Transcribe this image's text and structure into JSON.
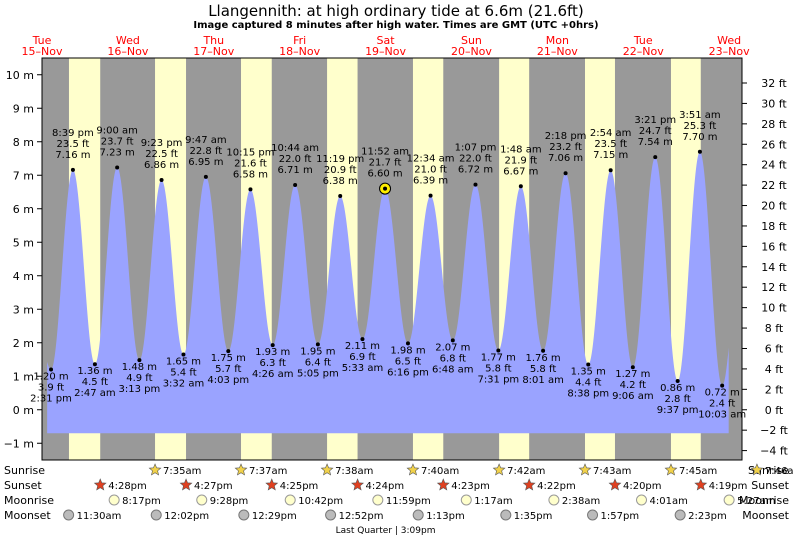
{
  "header": {
    "title": "Llangennith: at high  ordinary tide at 6.6m (21.6ft)",
    "subtitle": "Image captured 8 minutes after high water. Times are GMT (UTC +0hrs)"
  },
  "colors": {
    "day": "#ffffcc",
    "night": "#999999",
    "tide": "#9aa3ff",
    "day_label": "#ff0000",
    "current_marker": "#ffee00"
  },
  "chart_data": {
    "type": "area",
    "title": "Llangennith: at high  ordinary tide at 6.6m (21.6ft)",
    "y_left": {
      "unit": "m",
      "range": [
        -1.5,
        10.5
      ],
      "ticks": [
        "−1 m",
        "0 m",
        "1 m",
        "2 m",
        "3 m",
        "4 m",
        "5 m",
        "6 m",
        "7 m",
        "8 m",
        "9 m",
        "10 m"
      ]
    },
    "y_right": {
      "unit": "ft",
      "ticks": [
        "−4 ft",
        "−2 ft",
        "0 ft",
        "2 ft",
        "4 ft",
        "6 ft",
        "8 ft",
        "10 ft",
        "12 ft",
        "14 ft",
        "16 ft",
        "18 ft",
        "20 ft",
        "22 ft",
        "24 ft",
        "26 ft",
        "28 ft",
        "30 ft",
        "32 ft"
      ]
    },
    "x_range_days": [
      15.0,
      23.15
    ],
    "days": [
      {
        "day": "Tue",
        "date": "15–Nov",
        "t": 15.0
      },
      {
        "day": "Wed",
        "date": "16–Nov",
        "t": 16.0
      },
      {
        "day": "Thu",
        "date": "17–Nov",
        "t": 17.0
      },
      {
        "day": "Fri",
        "date": "18–Nov",
        "t": 18.0
      },
      {
        "day": "Sat",
        "date": "19–Nov",
        "t": 19.0
      },
      {
        "day": "Sun",
        "date": "20–Nov",
        "t": 20.0
      },
      {
        "day": "Mon",
        "date": "21–Nov",
        "t": 21.0
      },
      {
        "day": "Tue",
        "date": "22–Nov",
        "t": 22.0
      },
      {
        "day": "Wed",
        "date": "23–Nov",
        "t": 23.0
      }
    ],
    "nights": [
      [
        14.9,
        15.314
      ],
      [
        15.678,
        16.316
      ],
      [
        16.677,
        17.317
      ],
      [
        17.675,
        18.319
      ],
      [
        18.674,
        19.319
      ],
      [
        19.672,
        20.322
      ],
      [
        20.672,
        21.322
      ],
      [
        21.671,
        22.323
      ],
      [
        22.67,
        23.324
      ]
    ],
    "tides": [
      {
        "type": "low",
        "t": 15.105,
        "m": "1.20 m",
        "ft": "3.9 ft",
        "time": "2:31 pm",
        "h": 1.2
      },
      {
        "type": "high",
        "t": 15.36,
        "m": "7.16 m",
        "ft": "23.5 ft",
        "time": "8:39 pm",
        "h": 7.16
      },
      {
        "type": "low",
        "t": 15.616,
        "m": "1.36 m",
        "ft": "4.5 ft",
        "time": "2:47 am",
        "h": 1.36
      },
      {
        "type": "high",
        "t": 15.875,
        "m": "7.23 m",
        "ft": "23.7 ft",
        "time": "9:00 am",
        "h": 7.23
      },
      {
        "type": "low",
        "t": 16.134,
        "m": "1.48 m",
        "ft": "4.9 ft",
        "time": "3:13 pm",
        "h": 1.48
      },
      {
        "type": "high",
        "t": 16.392,
        "m": "6.86 m",
        "ft": "22.5 ft",
        "time": "9:23 pm",
        "h": 6.86
      },
      {
        "type": "low",
        "t": 16.647,
        "m": "1.65 m",
        "ft": "5.4 ft",
        "time": "3:32 am",
        "h": 1.65
      },
      {
        "type": "high",
        "t": 16.908,
        "m": "6.95 m",
        "ft": "22.8 ft",
        "time": "9:47 am",
        "h": 6.95
      },
      {
        "type": "low",
        "t": 17.169,
        "m": "1.75 m",
        "ft": "5.7 ft",
        "time": "4:03 pm",
        "h": 1.75
      },
      {
        "type": "high",
        "t": 17.427,
        "m": "6.58 m",
        "ft": "21.6 ft",
        "time": "10:15 pm",
        "h": 6.58
      },
      {
        "type": "low",
        "t": 17.686,
        "m": "1.93 m",
        "ft": "6.3 ft",
        "time": "4:26 am",
        "h": 1.93
      },
      {
        "type": "high",
        "t": 17.947,
        "m": "6.71 m",
        "ft": "22.0 ft",
        "time": "10:44 am",
        "h": 6.71
      },
      {
        "type": "low",
        "t": 18.212,
        "m": "1.95 m",
        "ft": "6.4 ft",
        "time": "5:05 pm",
        "h": 1.95
      },
      {
        "type": "high",
        "t": 18.472,
        "m": "6.38 m",
        "ft": "20.9 ft",
        "time": "11:19 pm",
        "h": 6.38
      },
      {
        "type": "low",
        "t": 18.731,
        "m": "2.11 m",
        "ft": "6.9 ft",
        "time": "5:33 am",
        "h": 2.11
      },
      {
        "type": "high",
        "t": 18.994,
        "m": "6.60 m",
        "ft": "21.7 ft",
        "time": "11:52 am",
        "h": 6.6,
        "current": true
      },
      {
        "type": "low",
        "t": 19.261,
        "m": "1.98 m",
        "ft": "6.5 ft",
        "time": "6:16 pm",
        "h": 1.98
      },
      {
        "type": "high",
        "t": 19.524,
        "m": "6.39 m",
        "ft": "21.0 ft",
        "time": "12:34 am",
        "h": 6.39
      },
      {
        "type": "low",
        "t": 19.783,
        "m": "2.07 m",
        "ft": "6.8 ft",
        "time": "6:48 am",
        "h": 2.07
      },
      {
        "type": "high",
        "t": 20.047,
        "m": "6.72 m",
        "ft": "22.0 ft",
        "time": "1:07 pm",
        "h": 6.72
      },
      {
        "type": "low",
        "t": 20.313,
        "m": "1.77 m",
        "ft": "5.8 ft",
        "time": "7:31 pm",
        "h": 1.77
      },
      {
        "type": "high",
        "t": 20.575,
        "m": "6.67 m",
        "ft": "21.9 ft",
        "time": "1:48 am",
        "h": 6.67
      },
      {
        "type": "low",
        "t": 20.834,
        "m": "1.76 m",
        "ft": "5.8 ft",
        "time": "8:01 am",
        "h": 1.76
      },
      {
        "type": "high",
        "t": 21.096,
        "m": "7.06 m",
        "ft": "23.2 ft",
        "time": "2:18 pm",
        "h": 7.06
      },
      {
        "type": "low",
        "t": 21.36,
        "m": "1.35 m",
        "ft": "4.4 ft",
        "time": "8:38 pm",
        "h": 1.35
      },
      {
        "type": "high",
        "t": 21.621,
        "m": "7.15 m",
        "ft": "23.5 ft",
        "time": "2:54 am",
        "h": 7.15
      },
      {
        "type": "low",
        "t": 21.879,
        "m": "1.27 m",
        "ft": "4.2 ft",
        "time": "9:06 am",
        "h": 1.27
      },
      {
        "type": "high",
        "t": 22.14,
        "m": "7.54 m",
        "ft": "24.7 ft",
        "time": "3:21 pm",
        "h": 7.54
      },
      {
        "type": "low",
        "t": 22.401,
        "m": "0.86 m",
        "ft": "2.8 ft",
        "time": "9:37 pm",
        "h": 0.86
      },
      {
        "type": "high",
        "t": 22.66,
        "m": "7.70 m",
        "ft": "25.3 ft",
        "time": "3:51 am",
        "h": 7.7
      },
      {
        "type": "low",
        "t": 22.919,
        "m": "0.72 m",
        "ft": "2.4 ft",
        "time": "10:03 am",
        "h": 0.72
      }
    ]
  },
  "astro": {
    "row_labels": [
      "Sunrise",
      "Sunset",
      "Moonrise",
      "Moonset"
    ],
    "sunrise": [
      {
        "t": 16.316,
        "label": "7:35am"
      },
      {
        "t": 17.317,
        "label": "7:37am"
      },
      {
        "t": 18.319,
        "label": "7:38am"
      },
      {
        "t": 19.319,
        "label": "7:40am"
      },
      {
        "t": 20.322,
        "label": "7:42am"
      },
      {
        "t": 21.322,
        "label": "7:43am"
      },
      {
        "t": 22.323,
        "label": "7:45am"
      },
      {
        "t": 23.324,
        "label": "7:46am"
      }
    ],
    "sunset": [
      {
        "t": 15.678,
        "label": "4:28pm"
      },
      {
        "t": 16.677,
        "label": "4:27pm"
      },
      {
        "t": 17.675,
        "label": "4:25pm"
      },
      {
        "t": 18.674,
        "label": "4:24pm"
      },
      {
        "t": 19.672,
        "label": "4:23pm"
      },
      {
        "t": 20.672,
        "label": "4:22pm"
      },
      {
        "t": 21.671,
        "label": "4:20pm"
      },
      {
        "t": 22.67,
        "label": "4:19pm"
      }
    ],
    "moonrise": [
      {
        "t": 15.84,
        "label": "8:17pm"
      },
      {
        "t": 16.86,
        "label": "9:28pm"
      },
      {
        "t": 17.89,
        "label": "10:42pm"
      },
      {
        "t": 18.91,
        "label": "11:59pm"
      },
      {
        "t": 19.94,
        "label": "1:17am"
      },
      {
        "t": 20.96,
        "label": "2:38am"
      },
      {
        "t": 21.98,
        "label": "4:01am"
      },
      {
        "t": 23.0,
        "label": "5:27am"
      }
    ],
    "moonset": [
      {
        "t": 15.31,
        "label": "11:30am"
      },
      {
        "t": 16.33,
        "label": "12:02pm"
      },
      {
        "t": 17.35,
        "label": "12:29pm"
      },
      {
        "t": 18.36,
        "label": "12:52pm"
      },
      {
        "t": 19.38,
        "label": "1:13pm"
      },
      {
        "t": 20.4,
        "label": "1:35pm"
      },
      {
        "t": 21.41,
        "label": "1:57pm"
      },
      {
        "t": 22.43,
        "label": "2:23pm"
      }
    ],
    "moon_phase": "Last Quarter | 3:09pm"
  }
}
